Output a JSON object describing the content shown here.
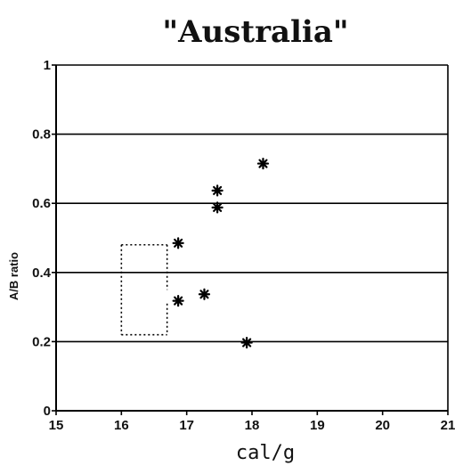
{
  "chart_data": {
    "type": "scatter",
    "title": "\"Australia\"",
    "xlabel": "cal/g",
    "ylabel": "A/B ratio",
    "xlim": [
      15,
      21
    ],
    "ylim": [
      0,
      1
    ],
    "xticks": [
      15,
      16,
      17,
      18,
      19,
      20,
      21
    ],
    "yticks": [
      0,
      0.2,
      0.4,
      0.6,
      0.8,
      1
    ],
    "xtick_labels": [
      "15",
      "16",
      "17",
      "18",
      "19",
      "20",
      "21"
    ],
    "ytick_labels": [
      "0",
      "0.2",
      "0.4",
      "0.6",
      "0.8",
      "1"
    ],
    "grid": "horizontal",
    "marker": "asterisk",
    "points": [
      {
        "x": 16.87,
        "y": 0.485
      },
      {
        "x": 16.87,
        "y": 0.318
      },
      {
        "x": 17.27,
        "y": 0.337
      },
      {
        "x": 17.47,
        "y": 0.637
      },
      {
        "x": 17.47,
        "y": 0.588
      },
      {
        "x": 17.92,
        "y": 0.197
      },
      {
        "x": 18.17,
        "y": 0.715
      }
    ],
    "annotations": [
      {
        "type": "dotted-rectangle",
        "x0": 16.0,
        "x1": 16.7,
        "y0": 0.22,
        "y1": 0.48,
        "gap_y": [
          0.31,
          0.35
        ]
      }
    ]
  }
}
